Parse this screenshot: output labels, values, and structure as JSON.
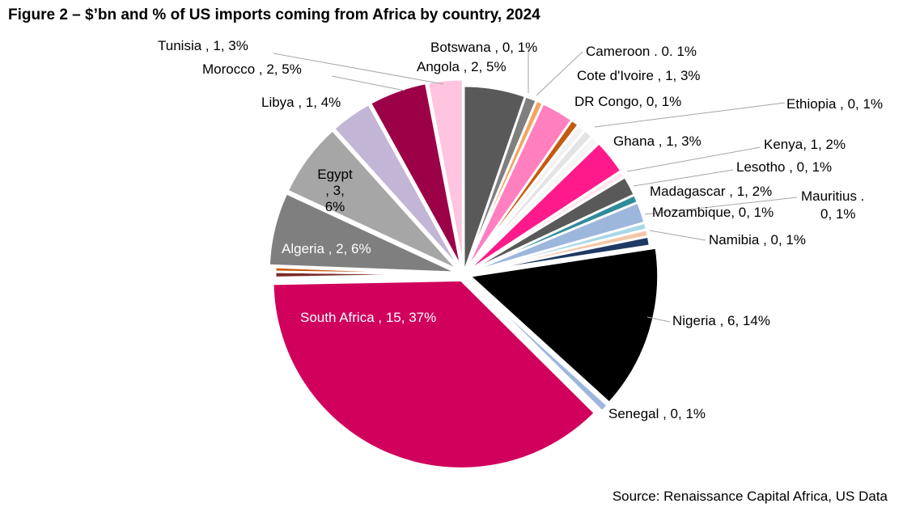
{
  "title": "Figure 2 – $’bn and % of US imports coming from Africa by country, 2024",
  "source": "Source: Renaissance Capital Africa, US Data",
  "chart_data": {
    "type": "pie",
    "title": "Figure 2 – $’bn and % of US imports coming from Africa by country, 2024",
    "start_angle_deg": 0,
    "direction": "clockwise",
    "slices": [
      {
        "name": "Angola",
        "label": "Angola , 2, 5%",
        "value": 2,
        "percent": 5.3,
        "color": "#595959"
      },
      {
        "name": "Botswana",
        "label": "Botswana , 0, 1%",
        "value": 0,
        "percent": 1.0,
        "color": "#7f7f7f"
      },
      {
        "name": "Cameroon",
        "label": "Cameroon . 0. 1%",
        "value": 0,
        "percent": 0.6,
        "color": "#f4a460"
      },
      {
        "name": "Cote d'Ivoire",
        "label": "Cote d'Ivoire , 1, 3%",
        "value": 1,
        "percent": 2.8,
        "color": "#ff7fbf"
      },
      {
        "name": "DR Congo",
        "label": "DR Congo, 0, 1%",
        "value": 0,
        "percent": 0.7,
        "color": "#c55a11"
      },
      {
        "name": "Ethiopia",
        "label": "Ethiopia , 0, 1%",
        "value": 0,
        "percent": 0.7,
        "color": "#f2f2f2"
      },
      {
        "name": "Gap1",
        "label": "",
        "value": 0,
        "percent": 0.8,
        "color": "#e4e4e4"
      },
      {
        "name": "Gap2",
        "label": "",
        "value": 0,
        "percent": 0.8,
        "color": "#f6f6f6"
      },
      {
        "name": "Ghana",
        "label": "Ghana , 1, 3%",
        "value": 1,
        "percent": 3.0,
        "color": "#ff1a8c"
      },
      {
        "name": "Gap3",
        "label": "",
        "value": 0,
        "percent": 0.6,
        "color": "#ffe6f0"
      },
      {
        "name": "Kenya",
        "label": "Kenya, 1, 2%",
        "value": 1,
        "percent": 1.7,
        "color": "#595959"
      },
      {
        "name": "Lesotho",
        "label": "Lesotho , 0, 1%",
        "value": 0,
        "percent": 0.7,
        "color": "#2e8b9a"
      },
      {
        "name": "Madagascar",
        "label": "Madagascar , 1, 2%",
        "value": 1,
        "percent": 1.8,
        "color": "#9db6dc"
      },
      {
        "name": "Mauritius",
        "label": "Mauritius . 0, 1%",
        "value": 0,
        "percent": 0.6,
        "color": "#a8d8e8"
      },
      {
        "name": "Mozambique",
        "label": "Mozambique, 0, 1%",
        "value": 0,
        "percent": 0.6,
        "color": "#f6c6a8"
      },
      {
        "name": "Namibia",
        "label": "Namibia , 0, 1%",
        "value": 0,
        "percent": 0.8,
        "color": "#1f3864"
      },
      {
        "name": "Nigeria",
        "label": "Nigeria , 6, 14%",
        "value": 6,
        "percent": 14.1,
        "color": "#000000"
      },
      {
        "name": "Senegal",
        "label": "Senegal , 0, 1%",
        "value": 0,
        "percent": 0.7,
        "color": "#9db6dc"
      },
      {
        "name": "South Africa",
        "label": "South Africa , 15, 37%",
        "value": 15,
        "percent": 37.1,
        "color": "#d1005c"
      },
      {
        "name": "Gap4",
        "label": "",
        "value": 0,
        "percent": 0.5,
        "color": "#7b2b2b"
      },
      {
        "name": "Gap5",
        "label": "",
        "value": 0,
        "percent": 0.4,
        "color": "#c55a11"
      },
      {
        "name": "Algeria",
        "label": "Algeria , 2, 6%",
        "value": 2,
        "percent": 6.3,
        "color": "#7f7f7f"
      },
      {
        "name": "Egypt",
        "label": "Egypt , 3, 6%",
        "value": 3,
        "percent": 6.4,
        "color": "#a6a6a6"
      },
      {
        "name": "Libya",
        "label": "Libya , 1, 4%",
        "value": 1,
        "percent": 3.6,
        "color": "#c3b5d6"
      },
      {
        "name": "Morocco",
        "label": "Morocco , 2, 5%",
        "value": 2,
        "percent": 5.0,
        "color": "#9c0047"
      },
      {
        "name": "Tunisia",
        "label": "Tunisia , 1, 3%",
        "value": 1,
        "percent": 3.0,
        "color": "#ffc4df"
      }
    ],
    "legend": "none"
  }
}
